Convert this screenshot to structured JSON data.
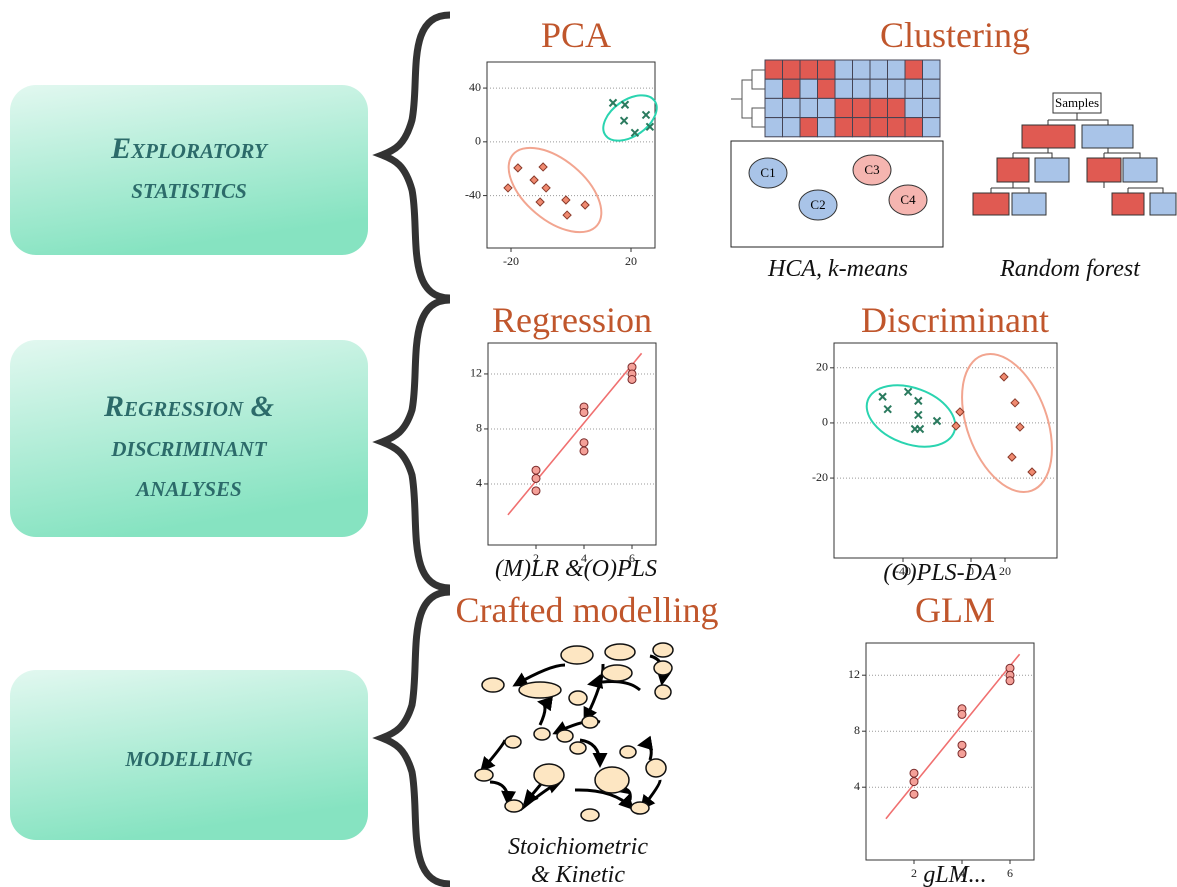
{
  "sections": [
    {
      "label": [
        "Exploratory",
        "statistics"
      ]
    },
    {
      "label": [
        "Regression &",
        "discriminant",
        "analyses"
      ]
    },
    {
      "label": [
        "modelling"
      ]
    }
  ],
  "panels": {
    "pca": {
      "type": "scatter",
      "title": "PCA",
      "xlim": [
        -28,
        28
      ],
      "ylim": [
        -79,
        59.4
      ],
      "xticks": [
        -20,
        20
      ],
      "yticks": [
        40,
        0,
        -40
      ],
      "crosses": {
        "x": [
          14,
          18,
          25,
          17.7,
          26.3,
          21.3
        ],
        "y": [
          29,
          27.6,
          20,
          15.7,
          11.2,
          6.7
        ]
      },
      "diamonds": {
        "x": [
          -17.7,
          -9.3,
          -12.3,
          -21,
          -8.3,
          -1.7,
          -10.3,
          4.7,
          -1.3
        ],
        "y": [
          -19.4,
          -18.7,
          -28.4,
          -34.3,
          -34.3,
          -43.3,
          -44.8,
          -47,
          -54.5
        ]
      }
    },
    "clustering": {
      "title": "Clustering",
      "captions": [
        "HCA, k-means",
        "Random forest"
      ],
      "clusters": [
        "C1",
        "C2",
        "C3",
        "C4"
      ],
      "tree_root": "Samples"
    },
    "regression": {
      "type": "scatter",
      "title": "Regression",
      "caption": "(M)LR &(O)PLS",
      "xlim": [
        0,
        7
      ],
      "ylim": [
        -0.44,
        14.25
      ],
      "xticks": [
        2,
        4,
        6
      ],
      "yticks": [
        4,
        8,
        12
      ],
      "circles": {
        "x": [
          2,
          2,
          2,
          4,
          4,
          4,
          4,
          6,
          6,
          6
        ],
        "y": [
          5,
          4.4,
          3.5,
          9.6,
          9.2,
          7,
          6.4,
          12.5,
          12,
          11.6
        ]
      },
      "fit": {
        "x": [
          0.83,
          6.4
        ],
        "y": [
          1.75,
          13.5
        ]
      }
    },
    "discriminant": {
      "type": "scatter",
      "title": "Discriminant",
      "caption": "(O)PLS-DA",
      "xlim": [
        -80.6,
        50.6
      ],
      "ylim": [
        -49,
        29
      ],
      "xticks": [
        -40,
        0,
        20
      ],
      "yticks": [
        20,
        0,
        -20
      ],
      "crosses": {
        "x": [
          -52,
          -49,
          -37,
          -31,
          -31,
          -33,
          -30,
          -20
        ],
        "y": [
          9.5,
          5,
          11.3,
          8,
          2.9,
          -2.2,
          -2.2,
          0.7
        ]
      },
      "diamonds": {
        "x": [
          19.4,
          -6.5,
          25.9,
          -8.8,
          28.8,
          24.1,
          35.9
        ],
        "y": [
          16.7,
          4,
          7.3,
          -1.1,
          -1.5,
          -12.4,
          -17.8
        ]
      }
    },
    "crafted": {
      "title": "Crafted modelling",
      "caption": [
        "Stoichiometric",
        "& Kinetic"
      ]
    },
    "glm": {
      "type": "scatter",
      "title": "GLM",
      "caption": "gLM...",
      "xlim": [
        0,
        7
      ],
      "ylim": [
        -1.2,
        14.3
      ],
      "xticks": [
        2,
        4,
        6
      ],
      "yticks": [
        4,
        8,
        12
      ],
      "circles": {
        "x": [
          2,
          2,
          2,
          4,
          4,
          4,
          4,
          6,
          6,
          6
        ],
        "y": [
          5,
          4.4,
          3.5,
          9.6,
          9.2,
          7,
          6.4,
          12.5,
          12,
          11.6
        ]
      },
      "fit": {
        "x": [
          0.83,
          6.4
        ],
        "y": [
          1.75,
          13.5
        ]
      }
    }
  }
}
